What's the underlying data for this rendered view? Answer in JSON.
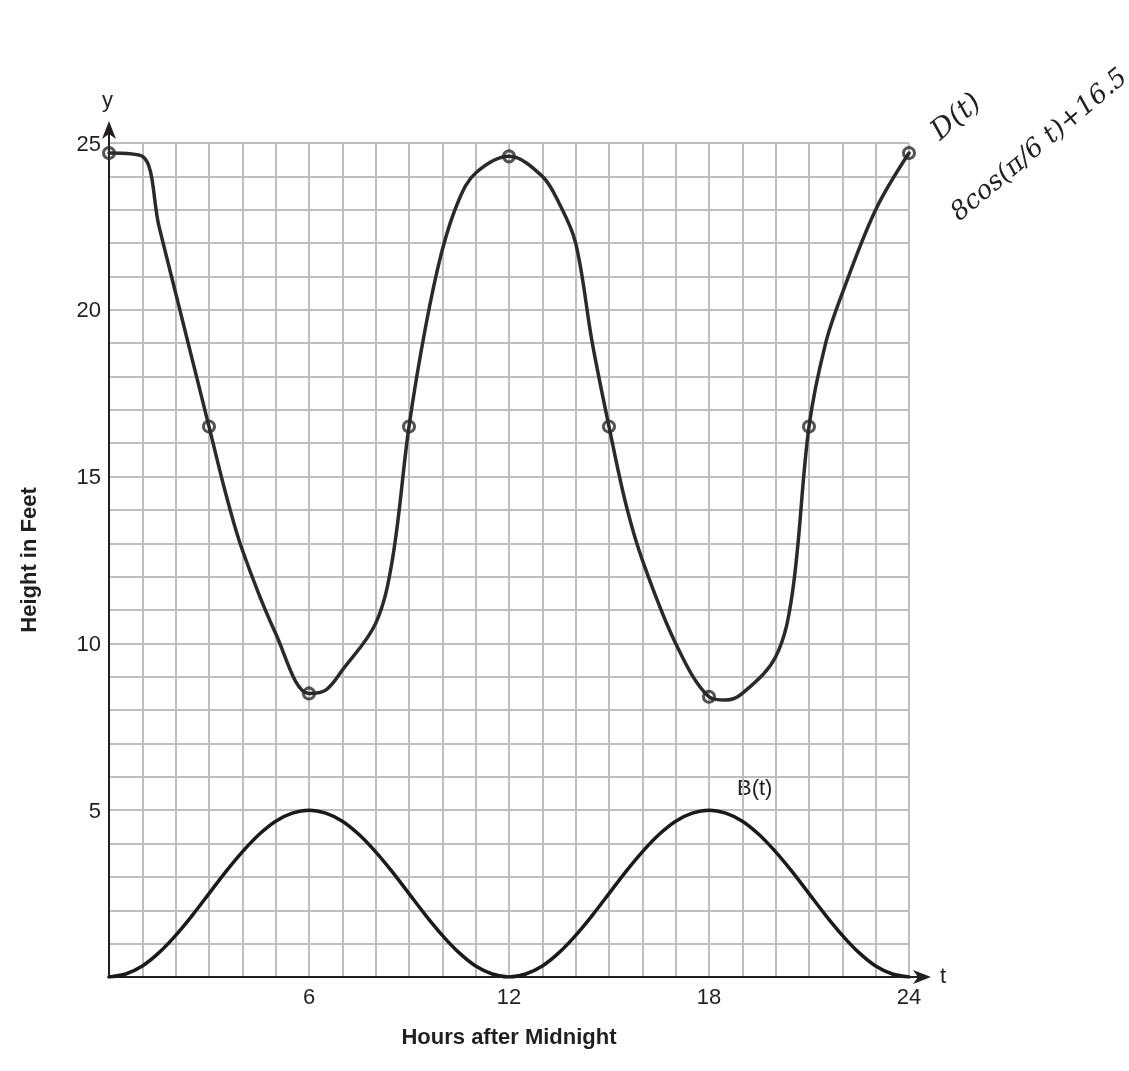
{
  "chart_data": {
    "type": "line",
    "xlabel": "Hours after Midnight",
    "ylabel": "Height in Feet",
    "annotations": [
      "y",
      "t",
      "8cos(π/6 t)+16.5"
    ],
    "xlim": [
      0,
      24
    ],
    "ylim": [
      0,
      25
    ],
    "xticks": [
      {
        "value": 1,
        "label": null
      },
      {
        "value": 2,
        "label": null
      },
      {
        "value": 3,
        "label": null
      },
      {
        "value": 4,
        "label": null
      },
      {
        "value": 5,
        "label": null
      },
      6,
      {
        "value": 7,
        "label": null
      },
      {
        "value": 8,
        "label": null
      },
      {
        "value": 9,
        "label": null
      },
      {
        "value": 10,
        "label": null
      },
      {
        "value": 11,
        "label": null
      },
      12,
      {
        "value": 13,
        "label": null
      },
      {
        "value": 14,
        "label": null
      },
      {
        "value": 15,
        "label": null
      },
      {
        "value": 16,
        "label": null
      },
      {
        "value": 17,
        "label": null
      },
      18,
      {
        "value": 19,
        "label": null
      },
      {
        "value": 20,
        "label": null
      },
      {
        "value": 21,
        "label": null
      },
      {
        "value": 22,
        "label": null
      },
      {
        "value": 23,
        "label": null
      },
      24
    ],
    "yticks": [
      {
        "value": 1,
        "label": null
      },
      {
        "value": 2,
        "label": null
      },
      {
        "value": 3,
        "label": null
      },
      {
        "value": 4,
        "label": null
      },
      5,
      {
        "value": 6,
        "label": null
      },
      {
        "value": 7,
        "label": null
      },
      {
        "value": 8,
        "label": null
      },
      {
        "value": 9,
        "label": null
      },
      10,
      {
        "value": 11,
        "label": null
      },
      {
        "value": 12,
        "label": null
      },
      {
        "value": 13,
        "label": null
      },
      {
        "value": 14,
        "label": null
      },
      15,
      {
        "value": 16,
        "label": null
      },
      {
        "value": 17,
        "label": null
      },
      {
        "value": 18,
        "label": null
      },
      {
        "value": 19,
        "label": null
      },
      20,
      {
        "value": 21,
        "label": null
      },
      {
        "value": 22,
        "label": null
      },
      {
        "value": 23,
        "label": null
      },
      {
        "value": 24,
        "label": null
      },
      25
    ],
    "grid": true,
    "legend": false,
    "marker": "none",
    "line_style": "solid",
    "series": [
      {
        "name": "B(t)",
        "color": "#1a1a1a",
        "x": [
          0,
          0.5,
          1,
          1.5,
          2,
          2.5,
          3,
          3.5,
          4,
          4.5,
          5,
          5.5,
          6,
          6.5,
          7,
          7.5,
          8,
          8.5,
          9,
          9.5,
          10,
          10.5,
          11,
          11.5,
          12,
          12.5,
          13,
          13.5,
          14,
          14.5,
          15,
          15.5,
          16,
          16.5,
          17,
          17.5,
          18,
          18.5,
          19,
          19.5,
          20,
          20.5,
          21,
          21.5,
          22,
          22.5,
          23,
          23.5,
          24
        ],
        "values": [
          0,
          0.09,
          0.33,
          0.73,
          1.25,
          1.85,
          2.5,
          3.15,
          3.75,
          4.27,
          4.67,
          4.91,
          5,
          4.91,
          4.67,
          4.27,
          3.75,
          3.15,
          2.5,
          1.85,
          1.25,
          0.73,
          0.33,
          0.09,
          0,
          0.09,
          0.33,
          0.73,
          1.25,
          1.85,
          2.5,
          3.15,
          3.75,
          4.27,
          4.67,
          4.91,
          5,
          4.91,
          4.67,
          4.27,
          3.75,
          3.15,
          2.5,
          1.85,
          1.25,
          0.73,
          0.33,
          0.09,
          0
        ]
      },
      {
        "name": "D(t)",
        "color": "#2a2a2a",
        "x": [
          0,
          1,
          1.5,
          2,
          2.5,
          3,
          3.5,
          4,
          5,
          6,
          6.5,
          7,
          8,
          8.5,
          9,
          9.5,
          10,
          10.5,
          11,
          12,
          13,
          13.5,
          14,
          14.5,
          15,
          15.5,
          16,
          17,
          18,
          18.5,
          19,
          20,
          20.5,
          21,
          21.5,
          22,
          23,
          24
        ],
        "values": [
          24.7,
          24.6,
          22.5,
          20.5,
          18.5,
          16.5,
          14.5,
          12.8,
          10.3,
          8.5,
          8.6,
          9.2,
          10.6,
          12.5,
          16.5,
          19.5,
          21.8,
          23.3,
          24.1,
          24.6,
          24,
          23.2,
          22,
          19,
          16.5,
          14.2,
          12.5,
          10,
          8.4,
          8.3,
          8.5,
          9.6,
          11.5,
          16.5,
          19,
          20.5,
          23,
          24.7
        ]
      },
      {
        "type": "scatter",
        "color": "#2a2a2a",
        "marker": "circle",
        "x": [
          0,
          3,
          6,
          9,
          12,
          15,
          18,
          21,
          24
        ],
        "values": [
          24.7,
          16.5,
          8.5,
          16.5,
          24.6,
          16.5,
          8.4,
          16.5,
          24.7
        ]
      }
    ]
  }
}
